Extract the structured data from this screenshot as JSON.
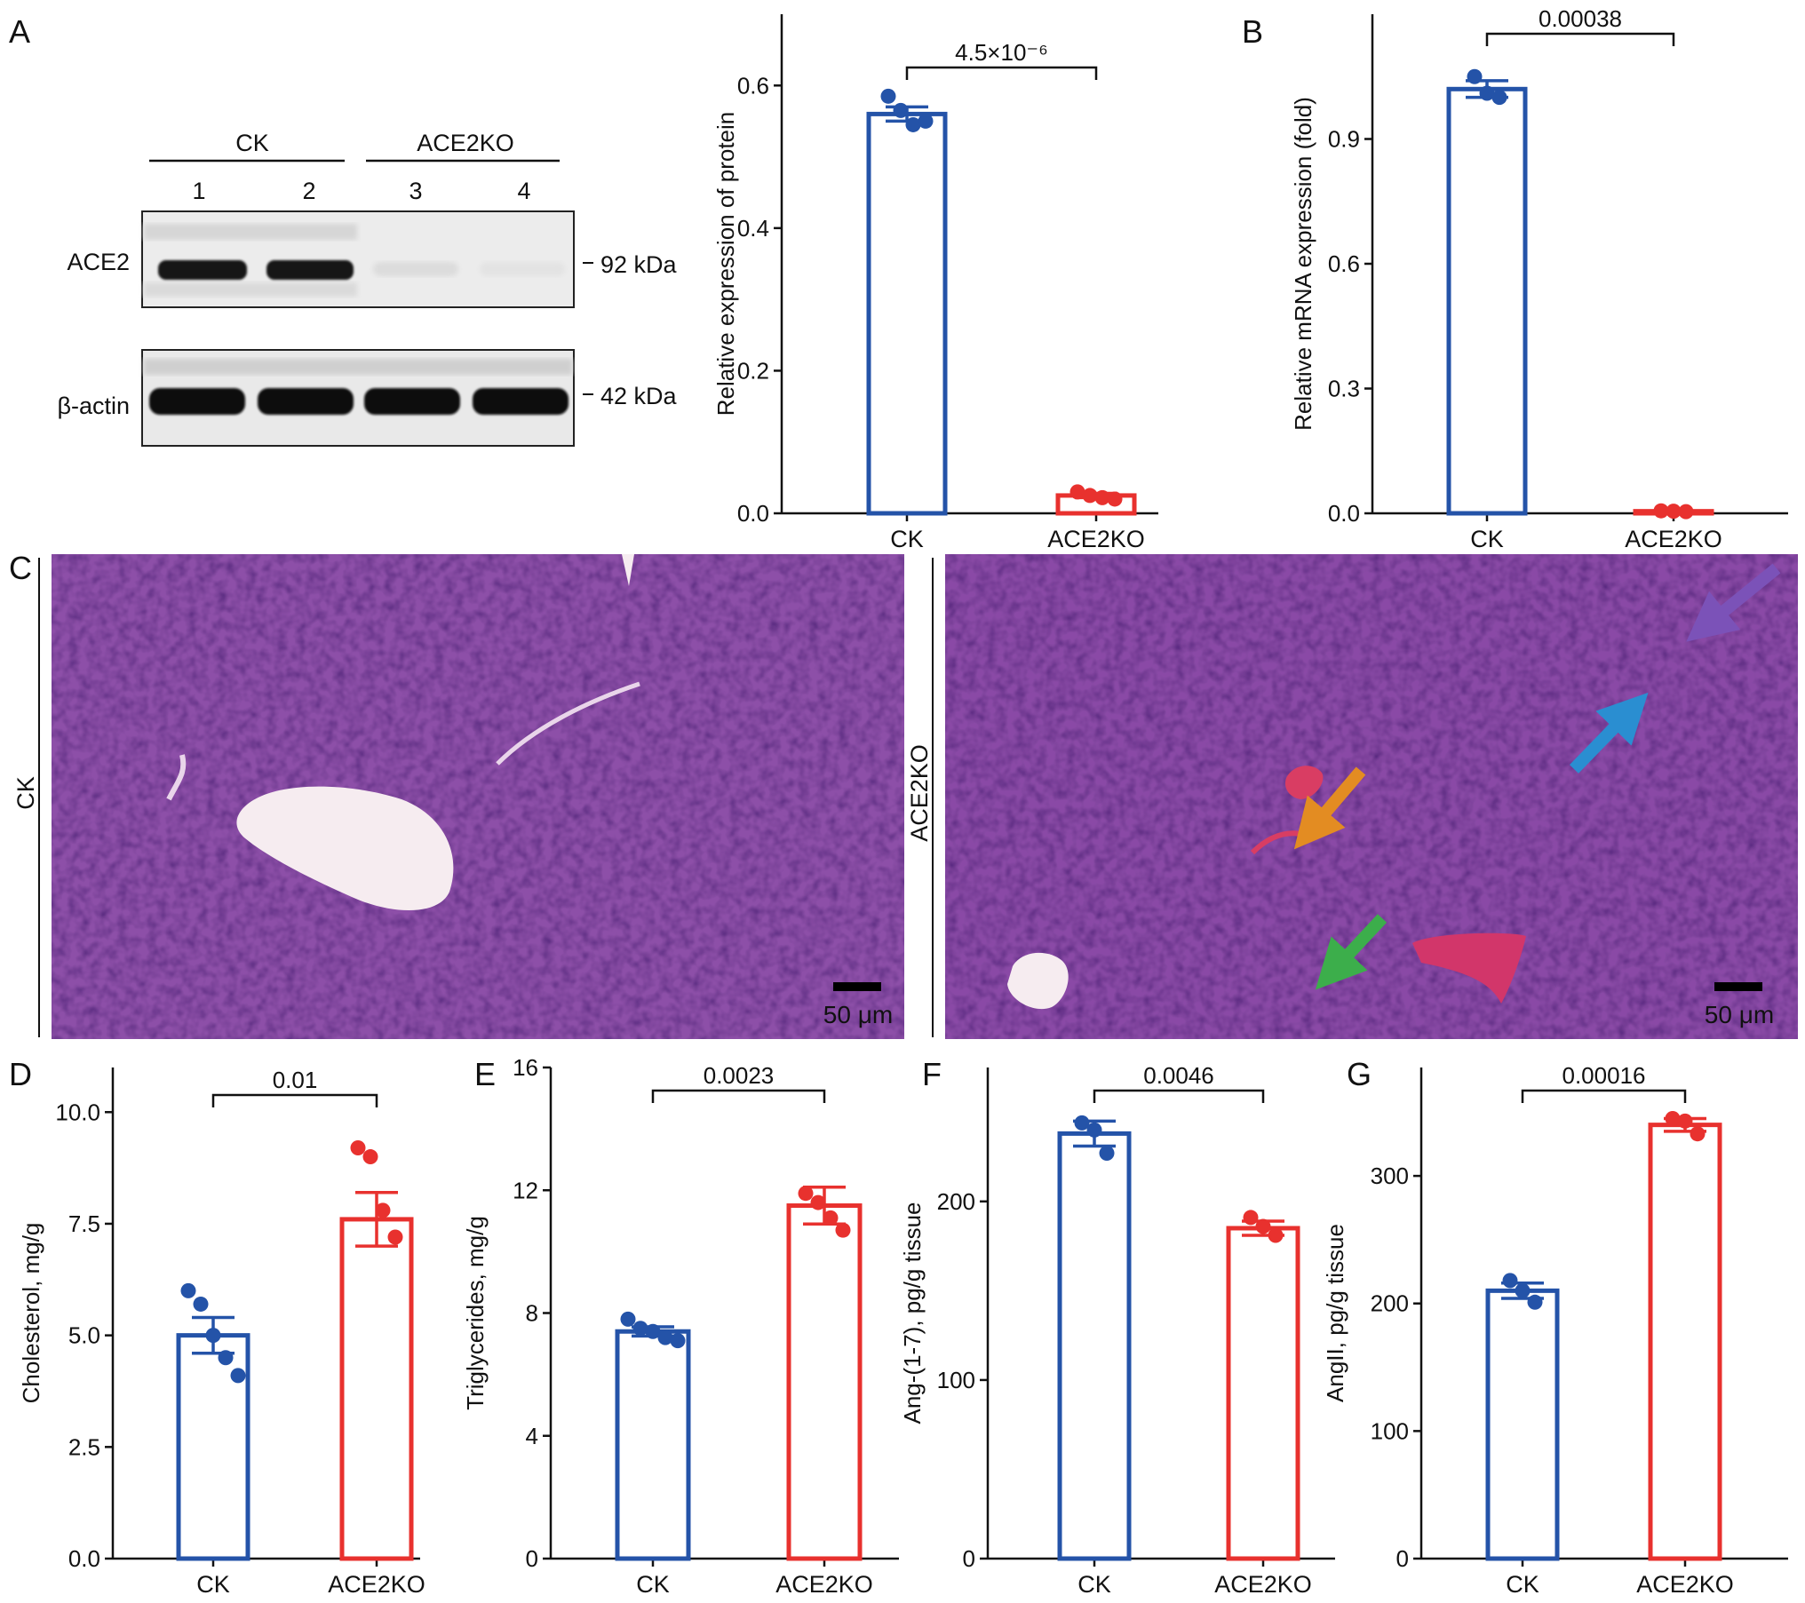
{
  "colors": {
    "ck": "#2453a8",
    "ko": "#e8312e",
    "axis": "#111111",
    "tissue": "#8a4aa6",
    "vessel": "#f4e8ee"
  },
  "panels": {
    "A": "A",
    "B": "B",
    "C": "C",
    "D": "D",
    "E": "E",
    "F": "F",
    "G": "G"
  },
  "blot": {
    "groups": [
      "CK",
      "ACE2KO"
    ],
    "lanes": [
      "1",
      "2",
      "3",
      "4"
    ],
    "rows": [
      {
        "label": "ACE2",
        "marker": "92 kDa",
        "bands": [
          0.9,
          0.9,
          0.05,
          0.02
        ]
      },
      {
        "label": "β-actin",
        "marker": "42 kDa",
        "bands": [
          1.0,
          1.0,
          1.0,
          1.0
        ]
      }
    ]
  },
  "histology": {
    "left_label": "CK",
    "right_label": "ACE2KO",
    "scale_bar": "50 μm",
    "arrows": [
      "purple-arrow",
      "blue-arrow",
      "orange-arrow",
      "green-arrow"
    ]
  },
  "chart_data": [
    {
      "id": "A",
      "type": "bar",
      "categories": [
        "CK",
        "ACE2KO"
      ],
      "values": [
        0.56,
        0.025
      ],
      "errors": [
        0.01,
        0.003
      ],
      "points": [
        [
          0.585,
          0.565,
          0.545,
          0.55
        ],
        [
          0.03,
          0.025,
          0.022,
          0.02
        ]
      ],
      "ylabel": "Relative expression of protein",
      "ylim": [
        0,
        0.7
      ],
      "yticks": [
        "0.0",
        "0.2",
        "0.4",
        "0.6"
      ],
      "ytick_values": [
        0,
        0.2,
        0.4,
        0.6
      ],
      "pvalue": "4.5×10⁻⁶",
      "sig_pair": [
        0,
        1
      ]
    },
    {
      "id": "B",
      "type": "bar",
      "categories": [
        "CK",
        "ACE2KO"
      ],
      "values": [
        1.02,
        0.005
      ],
      "errors": [
        0.02,
        0.001
      ],
      "points": [
        [
          1.05,
          1.01,
          1.0
        ],
        [
          0.006,
          0.005,
          0.004
        ]
      ],
      "ylabel": "Relative mRNA expression (fold)",
      "ylim": [
        0,
        1.2
      ],
      "yticks": [
        "0.0",
        "0.3",
        "0.6",
        "0.9"
      ],
      "ytick_values": [
        0,
        0.3,
        0.6,
        0.9
      ],
      "pvalue": "0.00038",
      "sig_pair": [
        0,
        1
      ]
    },
    {
      "id": "D",
      "type": "bar",
      "categories": [
        "CK",
        "ACE2KO"
      ],
      "values": [
        5.0,
        7.6
      ],
      "errors": [
        0.4,
        0.6
      ],
      "points": [
        [
          6.0,
          5.7,
          5.0,
          4.5,
          4.1
        ],
        [
          9.2,
          9.0,
          7.8,
          7.2
        ]
      ],
      "ylabel": "Cholesterol, mg/g",
      "ylim": [
        0,
        11
      ],
      "yticks": [
        "0.0",
        "2.5",
        "5.0",
        "7.5",
        "10.0"
      ],
      "ytick_values": [
        0,
        2.5,
        5,
        7.5,
        10
      ],
      "pvalue": "0.01",
      "sig_pair": [
        0,
        1
      ]
    },
    {
      "id": "E",
      "type": "bar",
      "categories": [
        "CK",
        "ACE2KO"
      ],
      "values": [
        7.4,
        11.5
      ],
      "errors": [
        0.15,
        0.6
      ],
      "points": [
        [
          7.8,
          7.5,
          7.4,
          7.2,
          7.1
        ],
        [
          11.9,
          11.6,
          11.1,
          10.7
        ]
      ],
      "ylabel": "Triglycerides, mg/g",
      "ylim": [
        0,
        16
      ],
      "yticks": [
        "0",
        "4",
        "8",
        "12",
        "16"
      ],
      "ytick_values": [
        0,
        4,
        8,
        12,
        16
      ],
      "pvalue": "0.0023",
      "sig_pair": [
        0,
        1
      ]
    },
    {
      "id": "F",
      "type": "bar",
      "categories": [
        "CK",
        "ACE2KO"
      ],
      "values": [
        238,
        185
      ],
      "errors": [
        7,
        4
      ],
      "points": [
        [
          244,
          240,
          227
        ],
        [
          191,
          186,
          181
        ]
      ],
      "ylabel": "Ang-(1-7), pg/g tissue",
      "ylim": [
        0,
        275
      ],
      "yticks": [
        "0",
        "100",
        "200"
      ],
      "ytick_values": [
        0,
        100,
        200
      ],
      "pvalue": "0.0046",
      "sig_pair": [
        0,
        1
      ]
    },
    {
      "id": "G",
      "type": "bar",
      "categories": [
        "CK",
        "ACE2KO"
      ],
      "values": [
        210,
        340
      ],
      "errors": [
        6,
        5
      ],
      "points": [
        [
          218,
          210,
          201
        ],
        [
          345,
          343,
          333
        ]
      ],
      "ylabel": "AngII, pg/g tissue",
      "ylim": [
        0,
        385
      ],
      "yticks": [
        "0",
        "100",
        "200",
        "300"
      ],
      "ytick_values": [
        0,
        100,
        200,
        300
      ],
      "pvalue": "0.00016",
      "sig_pair": [
        0,
        1
      ]
    }
  ]
}
